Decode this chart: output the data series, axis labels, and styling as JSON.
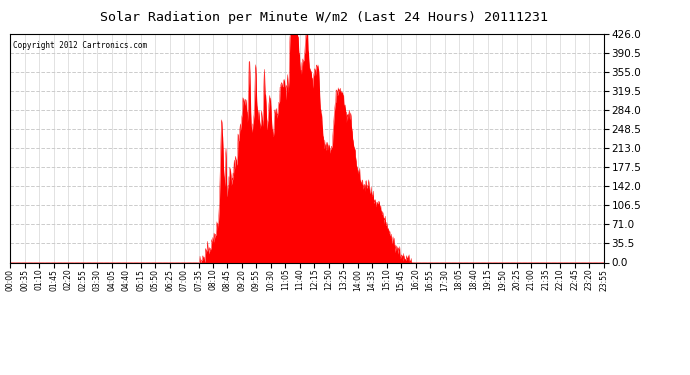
{
  "title": "Solar Radiation per Minute W/m2 (Last 24 Hours) 20111231",
  "copyright_text": "Copyright 2012 Cartronics.com",
  "fill_color": "#ff0000",
  "line_color": "#ff0000",
  "background_color": "#ffffff",
  "plot_bg_color": "#ffffff",
  "grid_color": "#cccccc",
  "dashed_line_color": "#ff0000",
  "y_ticks": [
    0.0,
    35.5,
    71.0,
    106.5,
    142.0,
    177.5,
    213.0,
    248.5,
    284.0,
    319.5,
    355.0,
    390.5,
    426.0
  ],
  "ylim": [
    0.0,
    426.0
  ],
  "x_tick_labels": [
    "00:00",
    "00:35",
    "01:10",
    "01:45",
    "02:20",
    "02:55",
    "03:30",
    "04:05",
    "04:40",
    "05:15",
    "05:50",
    "06:25",
    "07:00",
    "07:35",
    "08:10",
    "08:45",
    "09:20",
    "09:55",
    "10:30",
    "11:05",
    "11:40",
    "12:15",
    "12:50",
    "13:25",
    "14:00",
    "14:35",
    "15:10",
    "15:45",
    "16:20",
    "16:55",
    "17:30",
    "18:05",
    "18:40",
    "19:15",
    "19:50",
    "20:25",
    "21:00",
    "21:35",
    "22:10",
    "22:45",
    "23:20",
    "23:55"
  ],
  "num_minutes": 1440,
  "sunrise_minute": 460,
  "sunset_minute": 975
}
